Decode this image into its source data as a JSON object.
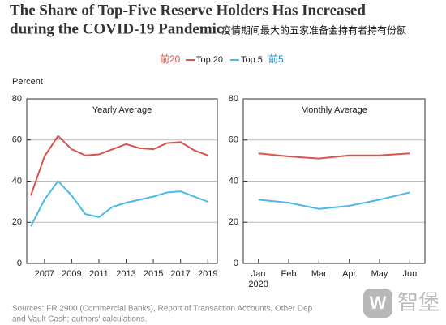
{
  "title": [
    "The Share of Top-Five Reserve Holders Has Increased",
    "during the COVID-19 Pandemic"
  ],
  "annotation": "疫情期间最大的五家准备金持有者持有份额",
  "legend_annotations": [
    "前20",
    "前5"
  ],
  "y_label": "Percent",
  "source": [
    "Sources: FR 2900 (Commercial Banks), Report of Transaction Accounts, Other Dep",
    "and Vault Cash; authors' calculations."
  ],
  "watermark": "智堡",
  "chart_data": [
    {
      "type": "line",
      "title": "Yearly Average",
      "x": [
        2006,
        2007,
        2008,
        2009,
        2010,
        2011,
        2012,
        2013,
        2014,
        2015,
        2016,
        2017,
        2018,
        2019
      ],
      "series": [
        {
          "name": "Top 20",
          "color": "#d9534f",
          "values": [
            33,
            52,
            62,
            55.5,
            52.5,
            53,
            55.5,
            58,
            56,
            55.5,
            58.5,
            59,
            55,
            52.5
          ]
        },
        {
          "name": "Top 5",
          "color": "#4db8e8",
          "values": [
            18,
            31,
            40,
            33,
            24,
            22.5,
            27.5,
            29.5,
            31,
            32.5,
            34.5,
            35,
            32.5,
            30
          ]
        }
      ],
      "xlim": [
        2005.7,
        2019.7
      ],
      "xticks": [
        2007,
        2009,
        2011,
        2013,
        2015,
        2017,
        2019
      ],
      "ylim": [
        0,
        80
      ],
      "yticks": [
        0,
        20,
        40,
        60,
        80
      ],
      "grid": true
    },
    {
      "type": "line",
      "title": "Monthly Average",
      "categories": [
        "Jan",
        "Feb",
        "Mar",
        "Apr",
        "May",
        "Jun"
      ],
      "x_sublabel": "2020",
      "series": [
        {
          "name": "Top 20",
          "color": "#d9534f",
          "values": [
            53.5,
            52,
            51,
            52.5,
            52.5,
            53.5
          ]
        },
        {
          "name": "Top 5",
          "color": "#4db8e8",
          "values": [
            31,
            29.5,
            26.5,
            28,
            31,
            34.5
          ]
        }
      ],
      "ylim": [
        0,
        80
      ],
      "yticks": [
        0,
        20,
        40,
        60,
        80
      ],
      "grid": true
    }
  ]
}
